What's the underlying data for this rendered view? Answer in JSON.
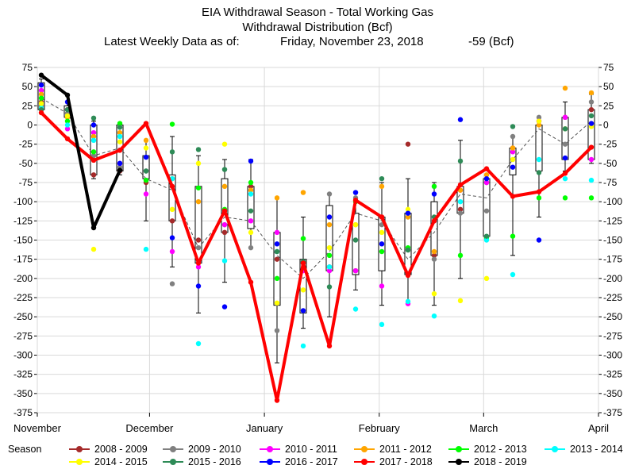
{
  "chart_data": {
    "type": "scatter",
    "title": "EIA Withdrawal Season - Total Working Gas",
    "subtitle": "Withdrawal Distribution (Bcf)",
    "latest_label": "Latest Weekly Data as of:",
    "latest_date": "Friday, November 23, 2018",
    "latest_value": "-59 (Bcf)",
    "ylim": [
      -375,
      75
    ],
    "yticks": [
      "75",
      "50",
      "25",
      "0",
      "-25",
      "-50",
      "-75",
      "-100",
      "-125",
      "-150",
      "-175",
      "-200",
      "-225",
      "-250",
      "-275",
      "-300",
      "-325",
      "-350",
      "-375"
    ],
    "ytick_values": [
      75,
      50,
      25,
      0,
      -25,
      -50,
      -75,
      -100,
      -125,
      -150,
      -175,
      -200,
      -225,
      -250,
      -275,
      -300,
      -325,
      -350,
      -375
    ],
    "xlim": [
      0,
      21.5
    ],
    "xticks": [
      {
        "label": "November",
        "x": 0
      },
      {
        "label": "December",
        "x": 4.3
      },
      {
        "label": "January",
        "x": 8.7
      },
      {
        "label": "February",
        "x": 13.1
      },
      {
        "label": "March",
        "x": 17.1
      },
      {
        "label": "April",
        "x": 21.5
      }
    ],
    "grid": true,
    "legend_title": "Season",
    "legend_position": "bottom",
    "weeks": [
      0,
      1,
      2,
      3,
      4,
      5,
      6,
      7,
      8,
      9,
      10,
      11,
      12,
      13,
      14,
      15,
      16,
      17,
      18,
      19,
      20,
      21
    ],
    "boxes": [
      {
        "low": 20,
        "high": 55,
        "wlow": 15,
        "whigh": 60
      },
      {
        "low": 10,
        "high": 25,
        "wlow": 5,
        "whigh": 30
      },
      {
        "low": -65,
        "high": 0,
        "wlow": -70,
        "whigh": 5
      },
      {
        "low": -60,
        "high": 0,
        "wlow": -65,
        "whigh": 2
      },
      {
        "low": -70,
        "high": -40,
        "wlow": -125,
        "whigh": -20
      },
      {
        "low": -125,
        "high": -65,
        "wlow": -185,
        "whigh": -15
      },
      {
        "low": -180,
        "high": -80,
        "wlow": -245,
        "whigh": -40
      },
      {
        "low": -140,
        "high": -70,
        "wlow": -205,
        "whigh": -45
      },
      {
        "low": -135,
        "high": -80,
        "wlow": -160,
        "whigh": -45
      },
      {
        "low": -235,
        "high": -140,
        "wlow": -310,
        "whigh": -95
      },
      {
        "low": -245,
        "high": -175,
        "wlow": -265,
        "whigh": -120
      },
      {
        "low": -190,
        "high": -105,
        "wlow": -250,
        "whigh": -90
      },
      {
        "low": -195,
        "high": -115,
        "wlow": -215,
        "whigh": -95
      },
      {
        "low": -190,
        "high": -120,
        "wlow": -235,
        "whigh": -75
      },
      {
        "low": -195,
        "high": -115,
        "wlow": -230,
        "whigh": -70
      },
      {
        "low": -170,
        "high": -100,
        "wlow": -235,
        "whigh": -75
      },
      {
        "low": -115,
        "high": -80,
        "wlow": -200,
        "whigh": -20
      },
      {
        "low": -145,
        "high": -70,
        "wlow": -150,
        "whigh": -65
      },
      {
        "low": -65,
        "high": -30,
        "wlow": -170,
        "whigh": -15
      },
      {
        "low": -60,
        "high": 0,
        "wlow": -120,
        "whigh": 10
      },
      {
        "low": -45,
        "high": 10,
        "wlow": -60,
        "whigh": 30
      },
      {
        "low": -45,
        "high": 20,
        "wlow": -50,
        "whigh": 40
      }
    ],
    "average": [
      35,
      15,
      -40,
      -30,
      -70,
      -85,
      -160,
      -120,
      -125,
      -170,
      -200,
      -165,
      -115,
      -125,
      -175,
      -140,
      -90,
      -95,
      -45,
      -5,
      -25,
      5
    ],
    "series": [
      {
        "name": "2008 - 2009",
        "color": "#a52a2a",
        "values": [
          30,
          20,
          -65,
          -60,
          -75,
          -125,
          -150,
          -140,
          -80,
          -175,
          -180,
          -185,
          -190,
          -120,
          -25,
          -170,
          -110,
          -75,
          -30,
          5,
          10,
          20
        ]
      },
      {
        "name": "2009 - 2010",
        "color": "#808080",
        "values": [
          25,
          15,
          -40,
          -55,
          -60,
          -207,
          -160,
          -130,
          -160,
          -268,
          -180,
          -90,
          -95,
          -130,
          -195,
          -175,
          -115,
          -112,
          -15,
          10,
          -25,
          30
        ]
      },
      {
        "name": "2010 - 2011",
        "color": "#ff00ff",
        "values": [
          45,
          -5,
          -10,
          -50,
          -90,
          -165,
          -185,
          -130,
          -125,
          -140,
          -190,
          -190,
          -190,
          -210,
          -233,
          -80,
          -85,
          -75,
          -35,
          5,
          10,
          -45
        ]
      },
      {
        "name": "2011 - 2012",
        "color": "#ffa500",
        "values": [
          40,
          10,
          -15,
          -10,
          -20,
          -70,
          -100,
          -80,
          -85,
          -95,
          -88,
          -130,
          -130,
          -80,
          -120,
          -165,
          -85,
          -65,
          -30,
          0,
          48,
          42
        ]
      },
      {
        "name": "2012 - 2013",
        "color": "#00ff00",
        "values": [
          35,
          5,
          -35,
          2,
          -72,
          1,
          -82,
          -110,
          -75,
          -200,
          -148,
          -170,
          -100,
          -165,
          -160,
          -80,
          -170,
          -147,
          -145,
          -95,
          -95,
          -95
        ]
      },
      {
        "name": "2013 - 2014",
        "color": "#00ffff",
        "values": [
          22,
          0,
          -20,
          -15,
          -162,
          -70,
          -285,
          -177,
          -90,
          -165,
          -288,
          -185,
          -240,
          -260,
          -230,
          -249,
          -100,
          -150,
          -195,
          -45,
          -70,
          -72
        ]
      },
      {
        "name": "2014 - 2015",
        "color": "#ffff00",
        "values": [
          28,
          12,
          -162,
          -22,
          -30,
          -110,
          -50,
          -25,
          -140,
          -232,
          -215,
          -160,
          -130,
          -140,
          -110,
          -220,
          -229,
          -200,
          -45,
          5,
          -5,
          -2
        ]
      },
      {
        "name": "2015 - 2016",
        "color": "#2e8b57",
        "values": [
          20,
          20,
          9,
          -3,
          -60,
          -35,
          -32,
          -58,
          -112,
          -165,
          -178,
          -211,
          -150,
          -70,
          -163,
          -120,
          -47,
          -145,
          -2,
          -62,
          -5,
          12
        ]
      },
      {
        "name": "2016 - 2017",
        "color": "#0000ff",
        "values": [
          52,
          30,
          0,
          -50,
          -42,
          -147,
          -210,
          -237,
          -47,
          -155,
          -242,
          -120,
          -88,
          -155,
          -115,
          -90,
          7,
          -70,
          -55,
          -150,
          -43,
          2
        ]
      },
      {
        "name": "2017 - 2018",
        "color": "#ff0000",
        "values": [
          16,
          -18,
          -46,
          -33,
          2,
          -80,
          -180,
          -112,
          -205,
          -359,
          -180,
          -288,
          -98,
          -120,
          -196,
          -125,
          -78,
          -57,
          -93,
          -87,
          -63,
          -29
        ]
      },
      {
        "name": "2018 - 2019",
        "color": "#000000",
        "values": [
          65,
          39,
          -134,
          -59
        ]
      }
    ]
  }
}
